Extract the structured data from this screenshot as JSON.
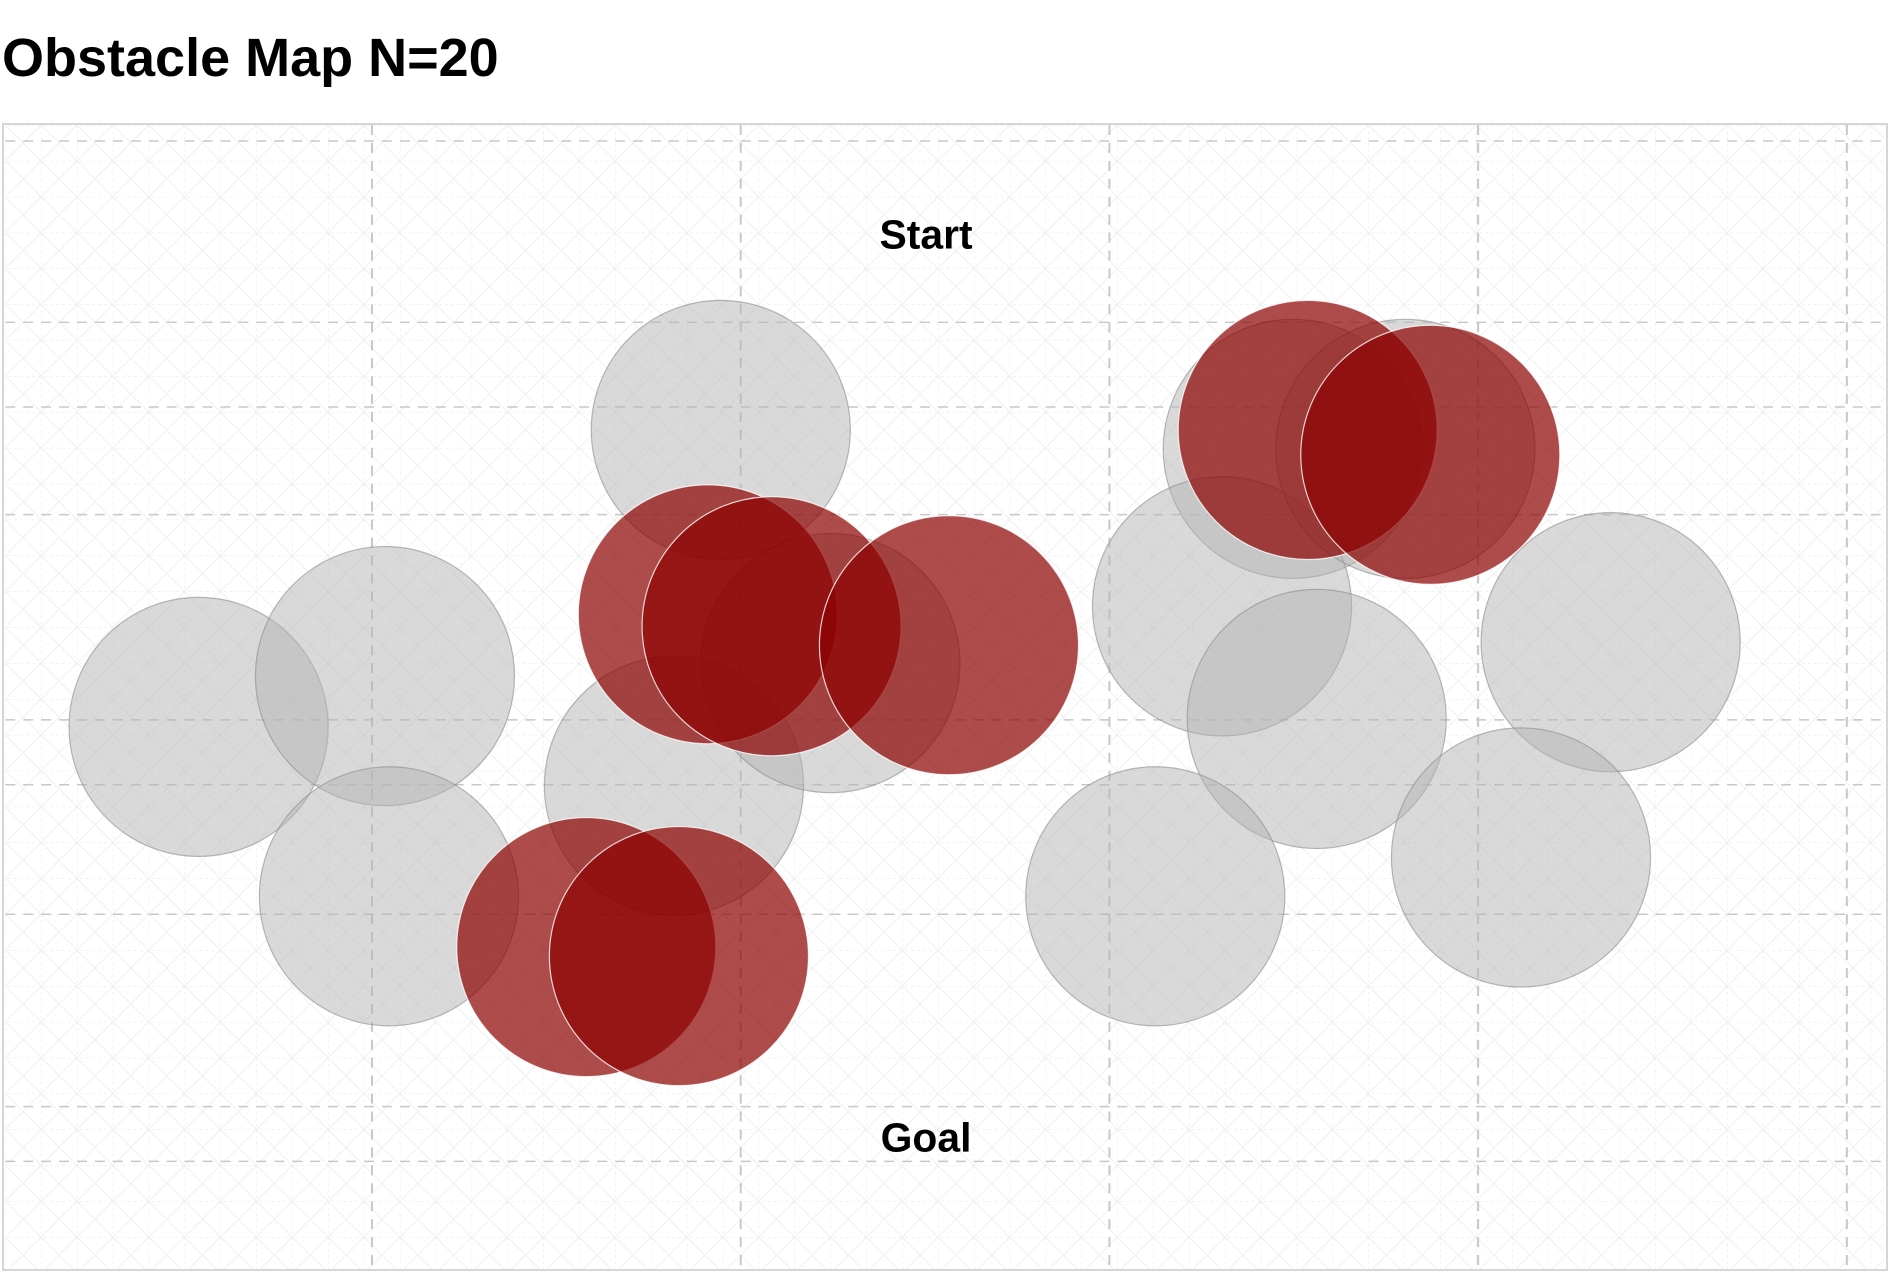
{
  "title": "Obstacle Map N=20",
  "labels": {
    "start": "Start",
    "goal": "Goal"
  },
  "colors": {
    "obstacle_fill": "#b4b4b4",
    "obstacle_stroke": "#8c8c8c",
    "highlight_fill": "#8b0000",
    "highlight_stroke": "#ffffff",
    "grid": "#c8c8c8",
    "frame": "#d6d6d6",
    "text": "#000000"
  },
  "obstacles": {
    "count": 20,
    "regular_count": 13,
    "highlighted_count": 7
  }
}
